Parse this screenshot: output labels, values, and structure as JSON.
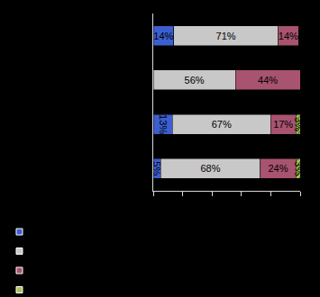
{
  "chart_data": {
    "type": "bar",
    "orientation": "horizontal",
    "stacked": true,
    "data_labels": true,
    "tick_labels": false,
    "grid": false,
    "categories": [
      null,
      null,
      null,
      null
    ],
    "series": [
      {
        "color": "#3c5fd0",
        "values": [
          14,
          0,
          13,
          5
        ],
        "value_labels": [
          "14%",
          null,
          "13%",
          "5%"
        ]
      },
      {
        "color": "#c8c8c8",
        "values": [
          71,
          56,
          67,
          68
        ],
        "value_labels": [
          "71%",
          "56%",
          "67%",
          "68%"
        ]
      },
      {
        "color": "#a8536f",
        "values": [
          14,
          44,
          17,
          24
        ],
        "value_labels": [
          "14%",
          "44%",
          "17%",
          "24%"
        ]
      },
      {
        "color": "#a9c35a",
        "values": [
          0,
          0,
          3,
          3
        ],
        "value_labels": [
          null,
          null,
          "3%",
          "3%"
        ]
      }
    ],
    "xlim": [
      0,
      100
    ],
    "xticks": [
      0,
      20,
      40,
      60,
      80,
      100
    ]
  }
}
